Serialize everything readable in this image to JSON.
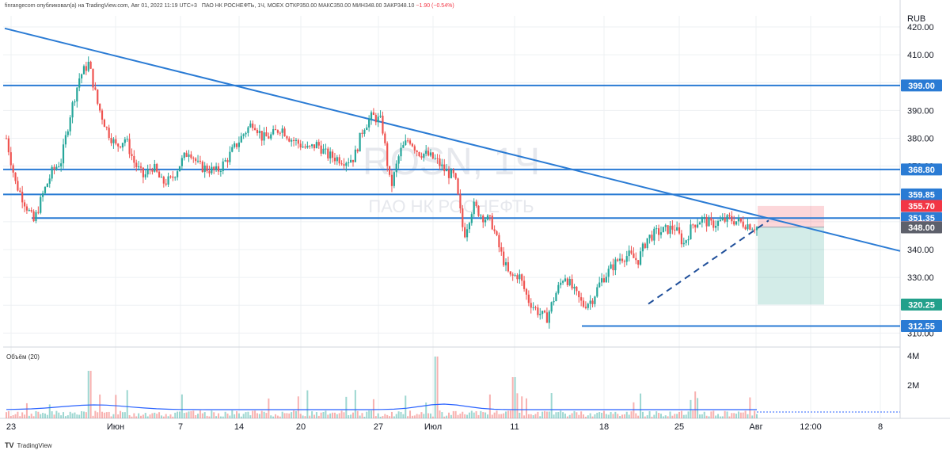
{
  "header": {
    "published": "finrangecom опубликовал(а) на TradingView.com, Авг 01, 2022 11:19 UTC+3",
    "symbol_line": "ПАО НК РОСНЕФТЬ, 1Ч, MOEX",
    "open_label": "ОТКР",
    "open": "350.00",
    "high_label": "МАКС",
    "high": "350.00",
    "low_label": "МИН",
    "low": "348.00",
    "close_label": "ЗАКР",
    "close": "348.10",
    "change": "−1.90 (−0.54%)"
  },
  "watermark": {
    "ticker": "ROSN, 1Ч",
    "name": "ПАО НК РОСНЕФТЬ"
  },
  "footer": {
    "brand": "TradingView",
    "logo": "tradingview-logo-icon"
  },
  "colors": {
    "up": "#26a69a",
    "down": "#ef5350",
    "line": "#2a7bd4",
    "red_label": "#f23645",
    "green_label": "#22a08b",
    "gray_label": "#5d606b"
  },
  "chart_data": {
    "type": "candlestick",
    "currency": "RUB",
    "yticks": [
      310,
      320,
      330,
      340,
      350,
      360,
      370,
      380,
      390,
      400,
      410,
      420
    ],
    "ylim": [
      305,
      424
    ],
    "xticks": [
      "23",
      "Июн",
      "7",
      "14",
      "20",
      "27",
      "Июл",
      "11",
      "18",
      "25",
      "Авг",
      "12:00",
      "8"
    ],
    "volume_label": "Объём (20)",
    "volume_ticks": [
      "4M",
      "2M"
    ],
    "horizontal_levels": [
      399.0,
      368.8,
      359.85,
      351.35,
      312.55
    ],
    "price_labels": [
      {
        "text": "399.00",
        "value": 399.0,
        "color": "blue"
      },
      {
        "text": "368.80",
        "value": 368.8,
        "color": "blue"
      },
      {
        "text": "359.85",
        "value": 359.85,
        "color": "blue"
      },
      {
        "text": "355.70",
        "value": 355.7,
        "color": "red"
      },
      {
        "text": "351.35",
        "value": 351.35,
        "color": "blue"
      },
      {
        "text": "348.10",
        "value": 348.1,
        "color": "red_light"
      },
      {
        "text": "348.00",
        "value": 348.0,
        "color": "gray"
      },
      {
        "text": "320.25",
        "value": 320.25,
        "color": "green"
      },
      {
        "text": "312.55",
        "value": 312.55,
        "color": "blue"
      }
    ],
    "trendline": {
      "from": [
        "23",
        419.5
      ],
      "to": [
        "8",
        339.5
      ]
    },
    "dashed_trendline": {
      "from": [
        "18",
        320.5
      ],
      "to": [
        "Авг",
        350.5
      ]
    },
    "position": {
      "entry": 348.1,
      "stop": 355.7,
      "target": 320.25
    },
    "path": [
      380,
      364,
      357,
      350,
      360,
      368,
      372,
      389,
      402,
      407,
      392,
      383,
      377,
      380,
      371,
      366,
      370,
      364,
      365,
      371,
      376,
      370,
      369,
      368,
      372,
      377,
      382,
      386,
      380,
      381,
      384,
      380,
      378,
      376,
      378,
      374,
      373,
      372,
      373,
      384,
      388,
      386,
      362,
      375,
      380,
      375,
      374,
      372,
      368,
      366,
      345,
      356,
      352,
      350,
      339,
      330,
      331,
      322,
      318,
      315,
      324,
      331,
      325,
      320,
      322,
      329,
      333,
      337,
      338,
      336,
      344,
      346,
      347,
      348,
      342,
      349,
      351,
      349,
      350,
      351,
      350,
      349,
      348
    ]
  }
}
